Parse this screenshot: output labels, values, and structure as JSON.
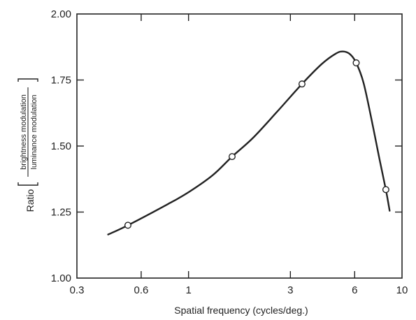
{
  "chart_data": {
    "type": "line",
    "xscale": "log",
    "xlim": [
      0.3,
      10
    ],
    "ylim": [
      1.0,
      2.0
    ],
    "xticks": [
      0.3,
      0.6,
      1,
      3,
      6,
      10
    ],
    "xtick_labels": [
      "0.3",
      "0.6",
      "1",
      "3",
      "6",
      "10"
    ],
    "yticks": [
      1.0,
      1.25,
      1.5,
      1.75,
      2.0
    ],
    "ytick_labels": [
      "1.00",
      "1.25",
      "1.50",
      "1.75",
      "2.00"
    ],
    "xlabel": "Spatial frequency (cycles/deg.)",
    "ylabel": {
      "prefix": "Ratio",
      "numerator": "brightness modulation",
      "denominator": "luminance modulation"
    },
    "grid": false,
    "points": [
      {
        "x": 0.52,
        "y": 1.2
      },
      {
        "x": 1.6,
        "y": 1.46
      },
      {
        "x": 3.4,
        "y": 1.735
      },
      {
        "x": 6.1,
        "y": 1.815
      },
      {
        "x": 8.4,
        "y": 1.335
      }
    ],
    "curve": [
      {
        "x": 0.42,
        "y": 1.165
      },
      {
        "x": 0.52,
        "y": 1.2
      },
      {
        "x": 0.8,
        "y": 1.28
      },
      {
        "x": 1.0,
        "y": 1.325
      },
      {
        "x": 1.3,
        "y": 1.39
      },
      {
        "x": 1.6,
        "y": 1.46
      },
      {
        "x": 2.0,
        "y": 1.53
      },
      {
        "x": 2.6,
        "y": 1.63
      },
      {
        "x": 3.4,
        "y": 1.735
      },
      {
        "x": 4.2,
        "y": 1.81
      },
      {
        "x": 4.9,
        "y": 1.85
      },
      {
        "x": 5.3,
        "y": 1.858
      },
      {
        "x": 5.7,
        "y": 1.848
      },
      {
        "x": 6.1,
        "y": 1.815
      },
      {
        "x": 6.6,
        "y": 1.74
      },
      {
        "x": 7.2,
        "y": 1.6
      },
      {
        "x": 7.8,
        "y": 1.46
      },
      {
        "x": 8.4,
        "y": 1.335
      },
      {
        "x": 8.75,
        "y": 1.255
      }
    ]
  }
}
